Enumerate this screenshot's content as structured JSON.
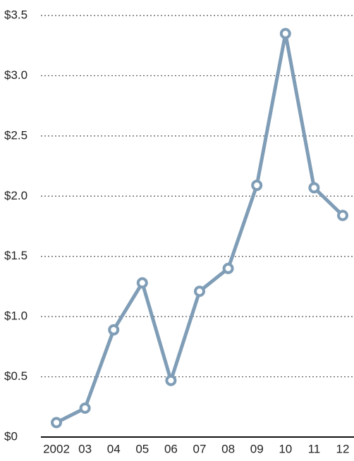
{
  "chart_data": {
    "type": "line",
    "categories": [
      "2002",
      "03",
      "04",
      "05",
      "06",
      "07",
      "08",
      "09",
      "10",
      "11",
      "12"
    ],
    "series": [
      {
        "color": "#7f9db6",
        "values": [
          0.12,
          0.24,
          0.89,
          1.28,
          0.47,
          1.21,
          1.4,
          2.09,
          3.35,
          2.07,
          1.84
        ]
      }
    ],
    "ylim": [
      0,
      3.5
    ],
    "yticks": [
      {
        "value": 0,
        "label": "$0"
      },
      {
        "value": 0.5,
        "label": "$0.5"
      },
      {
        "value": 1,
        "label": "$1.0"
      },
      {
        "value": 1.5,
        "label": "$1.5"
      },
      {
        "value": 2,
        "label": "$2.0"
      },
      {
        "value": 2.5,
        "label": "$2.5"
      },
      {
        "value": 3,
        "label": "$3.0"
      },
      {
        "value": 3.5,
        "label": "$3.5"
      }
    ],
    "grid": true
  }
}
